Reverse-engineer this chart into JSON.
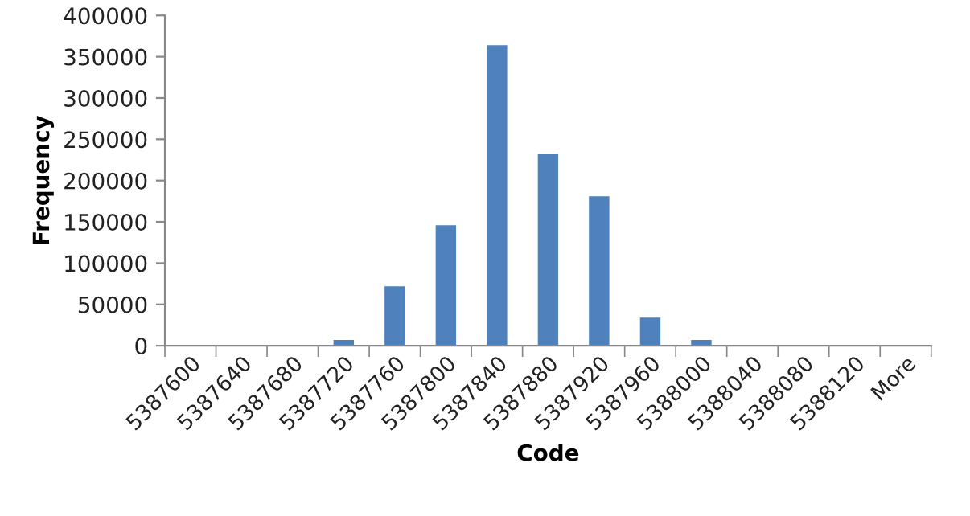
{
  "chart_data": {
    "type": "bar",
    "xlabel": "Code",
    "ylabel": "Frequency",
    "categories": [
      "5387600",
      "5387640",
      "5387680",
      "5387720",
      "5387760",
      "5387800",
      "5387840",
      "5387880",
      "5387920",
      "5387960",
      "5388000",
      "5388040",
      "5388080",
      "5388120",
      "More"
    ],
    "values": [
      0,
      0,
      0,
      7000,
      72000,
      146000,
      364000,
      232000,
      181000,
      34000,
      7000,
      0,
      0,
      0,
      0
    ],
    "color": "#4f81bd",
    "ylim": [
      0,
      400000
    ],
    "yticks": [
      0,
      50000,
      100000,
      150000,
      200000,
      250000,
      300000,
      350000,
      400000
    ],
    "grid": false,
    "legend": false
  }
}
